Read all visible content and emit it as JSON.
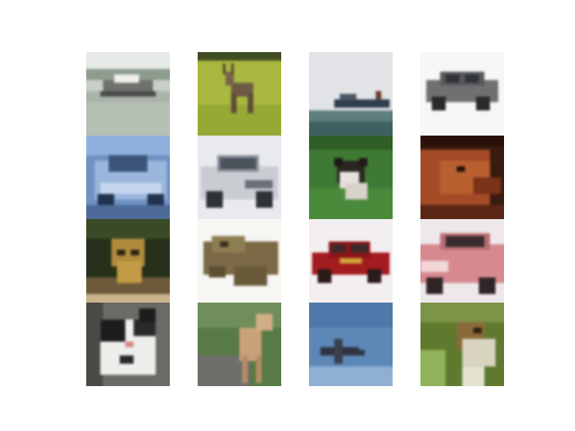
{
  "figure": {
    "background": "#ffffff"
  },
  "tiles": [
    {
      "subject": "boat",
      "colors": {
        "bg": "#b9c2b6",
        "main": "#7c7f7a",
        "accent": "#e2e4e0"
      }
    },
    {
      "subject": "deer",
      "colors": {
        "bg": "#a4b63c",
        "main": "#6e5a44",
        "accent": "#3f4b23"
      }
    },
    {
      "subject": "ship",
      "colors": {
        "bg": "#dfe1e4",
        "main": "#3a4858",
        "accent": "#6e8886"
      }
    },
    {
      "subject": "automobile",
      "colors": {
        "bg": "#f4f4f4",
        "main": "#6e6e70",
        "accent": "#3a3a3a"
      }
    },
    {
      "subject": "automobile",
      "colors": {
        "bg": "#6e90c3",
        "main": "#9ab6dc",
        "accent": "#22324f"
      }
    },
    {
      "subject": "automobile",
      "colors": {
        "bg": "#e9ebef",
        "main": "#c8ccd1",
        "accent": "#3d4148"
      }
    },
    {
      "subject": "dog",
      "colors": {
        "bg": "#3f7a34",
        "main": "#2a2622",
        "accent": "#e7e2de"
      }
    },
    {
      "subject": "horse",
      "colors": {
        "bg": "#3a1a10",
        "main": "#b0522a",
        "accent": "#6e2f1a"
      }
    },
    {
      "subject": "cat",
      "colors": {
        "bg": "#27301a",
        "main": "#b18b3c",
        "accent": "#6d8a3f"
      }
    },
    {
      "subject": "frog",
      "colors": {
        "bg": "#f6f6f3",
        "main": "#7b6a45",
        "accent": "#4a3f2a"
      }
    },
    {
      "subject": "automobile",
      "colors": {
        "bg": "#f2eef0",
        "main": "#a11b1e",
        "accent": "#2b1a1a"
      }
    },
    {
      "subject": "automobile",
      "colors": {
        "bg": "#f0eaec",
        "main": "#d68a8f",
        "accent": "#3a2c2e"
      }
    },
    {
      "subject": "cat",
      "colors": {
        "bg": "#6a6a66",
        "main": "#eeeeec",
        "accent": "#1d1d1d"
      }
    },
    {
      "subject": "deer",
      "colors": {
        "bg": "#577a45",
        "main": "#c9a27a",
        "accent": "#6e6e6a"
      }
    },
    {
      "subject": "airplane",
      "colors": {
        "bg": "#5c86b5",
        "main": "#2e3440",
        "accent": "#8fb0d3"
      }
    },
    {
      "subject": "bird",
      "colors": {
        "bg": "#5f7a2e",
        "main": "#d8d4c0",
        "accent": "#8a6a3a"
      }
    }
  ]
}
